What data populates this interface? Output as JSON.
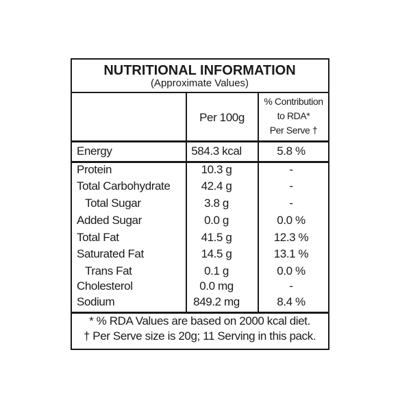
{
  "title": "NUTRITIONAL INFORMATION",
  "subtitle": "(Approximate Values)",
  "table": {
    "header": {
      "per_100g": "Per 100g",
      "rda": [
        "% Contribution",
        "to RDA*",
        "Per Serve †"
      ]
    },
    "rows": [
      [
        "Energy",
        "584.3 kcal",
        "5.8 %"
      ],
      [
        "Protein",
        "10.3 g",
        "-"
      ],
      [
        "Total Carbohydrate",
        "42.4 g",
        "-"
      ],
      [
        "Total Sugar",
        "3.8 g",
        "-"
      ],
      [
        "Added Sugar",
        "0.0 g",
        "0.0 %"
      ],
      [
        "Total Fat",
        "41.5 g",
        "12.3 %"
      ],
      [
        "Saturated Fat",
        "14.5 g",
        "13.1 %"
      ],
      [
        "Trans Fat",
        "0.1 g",
        "0.0 %"
      ],
      [
        "Cholesterol",
        "0.0 mg",
        "-"
      ],
      [
        "Sodium",
        "849.2 mg",
        "8.4 %"
      ]
    ]
  },
  "footnotes": [
    "* % RDA Values are based on 2000 kcal diet.",
    "† Per Serve size is 20g; 11 Serving in this pack."
  ]
}
